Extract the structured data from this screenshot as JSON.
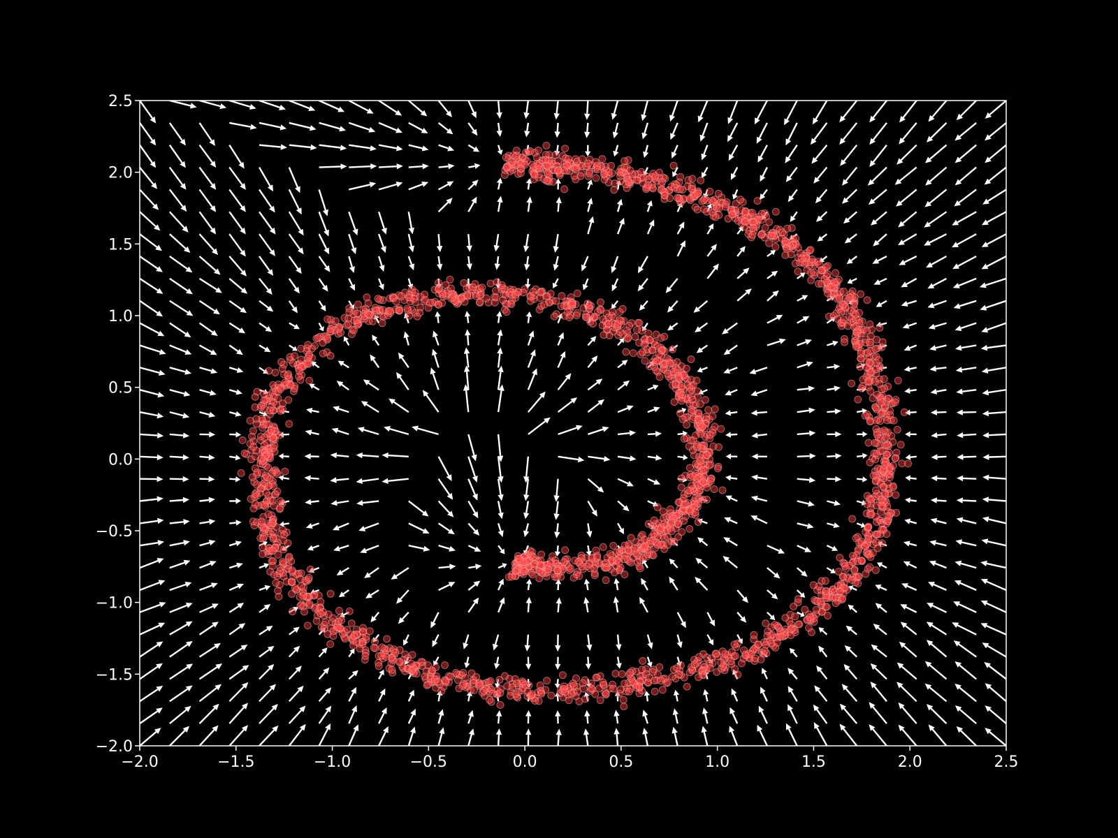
{
  "chart_data": {
    "type": "scatter",
    "title": "",
    "xlabel": "",
    "ylabel": "",
    "xlim": [
      -2.0,
      2.5
    ],
    "ylim": [
      -2.0,
      2.5
    ],
    "x_ticks": [
      "−2.0",
      "−1.5",
      "−1.0",
      "−0.5",
      "0.0",
      "0.5",
      "1.0",
      "1.5",
      "2.0",
      "2.5"
    ],
    "x_tick_values": [
      -2.0,
      -1.5,
      -1.0,
      -0.5,
      0.0,
      0.5,
      1.0,
      1.5,
      2.0,
      2.5
    ],
    "y_ticks": [
      "−2.0",
      "−1.5",
      "−1.0",
      "−0.5",
      "0.0",
      "0.5",
      "1.0",
      "1.5",
      "2.0",
      "2.5"
    ],
    "y_tick_values": [
      -2.0,
      -1.5,
      -1.0,
      -0.5,
      0.0,
      0.5,
      1.0,
      1.5,
      2.0,
      2.5
    ],
    "grid": false,
    "background": "#000000",
    "axis_color": "#ffffff",
    "point_color": "#ff3b3b",
    "point_edge_color": "#ffb0b0",
    "arrow_color": "#ffffff",
    "series": [
      {
        "kind": "scatter",
        "spiral_points": [
          [
            -0.1,
            2.07
          ],
          [
            0.1,
            2.04
          ],
          [
            0.35,
            2.02
          ],
          [
            0.6,
            1.95
          ],
          [
            0.85,
            1.85
          ],
          [
            1.1,
            1.72
          ],
          [
            1.35,
            1.52
          ],
          [
            1.55,
            1.28
          ],
          [
            1.7,
            1.0
          ],
          [
            1.8,
            0.7
          ],
          [
            1.85,
            0.35
          ],
          [
            1.87,
            0.0
          ],
          [
            1.85,
            -0.3
          ],
          [
            1.78,
            -0.6
          ],
          [
            1.65,
            -0.88
          ],
          [
            1.45,
            -1.12
          ],
          [
            1.2,
            -1.33
          ],
          [
            0.9,
            -1.48
          ],
          [
            0.55,
            -1.57
          ],
          [
            0.2,
            -1.61
          ],
          [
            -0.15,
            -1.6
          ],
          [
            -0.45,
            -1.52
          ],
          [
            -0.75,
            -1.38
          ],
          [
            -1.0,
            -1.15
          ],
          [
            -1.2,
            -0.85
          ],
          [
            -1.33,
            -0.5
          ],
          [
            -1.37,
            -0.15
          ],
          [
            -1.35,
            0.2
          ],
          [
            -1.25,
            0.55
          ],
          [
            -1.05,
            0.85
          ],
          [
            -0.8,
            1.03
          ],
          [
            -0.5,
            1.13
          ],
          [
            -0.2,
            1.16
          ],
          [
            0.1,
            1.12
          ],
          [
            0.4,
            1.0
          ],
          [
            0.62,
            0.82
          ],
          [
            0.8,
            0.58
          ],
          [
            0.9,
            0.3
          ],
          [
            0.93,
            0.02
          ],
          [
            0.9,
            -0.2
          ],
          [
            0.8,
            -0.42
          ],
          [
            0.65,
            -0.6
          ],
          [
            0.45,
            -0.72
          ],
          [
            0.2,
            -0.76
          ],
          [
            0.0,
            -0.74
          ],
          [
            -0.05,
            -0.72
          ]
        ]
      },
      {
        "kind": "quiver",
        "grid_x": [
          -2.0,
          2.5,
          30
        ],
        "grid_y": [
          -2.0,
          2.5,
          30
        ]
      }
    ]
  }
}
